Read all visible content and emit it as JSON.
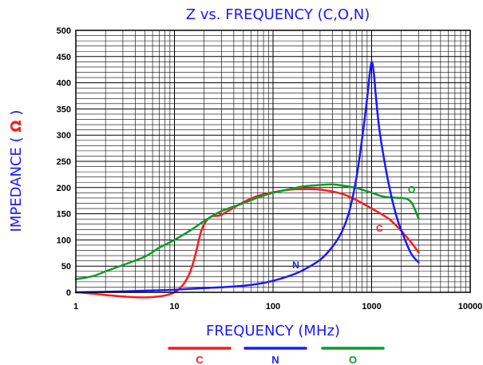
{
  "chart_data": {
    "type": "line",
    "title": "Z vs. FREQUENCY (C,O,N)",
    "xlabel": "FREQUENCY (MHz)",
    "ylabel": "IMPEDANCE",
    "ylabel_unit": "Ω",
    "x_scale": "log",
    "xlim": [
      1,
      10000
    ],
    "ylim": [
      0,
      500
    ],
    "x_ticks": [
      "1",
      "10",
      "100",
      "1000",
      "10000"
    ],
    "y_ticks": [
      "0",
      "50",
      "100",
      "150",
      "200",
      "250",
      "300",
      "350",
      "400",
      "450",
      "500"
    ],
    "grid": true,
    "legend_position": "bottom",
    "series": [
      {
        "name": "C",
        "color": "#ff1a1a",
        "label_at": [
          1200,
          116
        ],
        "points": [
          [
            1,
            0
          ],
          [
            10,
            0
          ],
          [
            20,
            130
          ],
          [
            30,
            148
          ],
          [
            50,
            172
          ],
          [
            70,
            184
          ],
          [
            100,
            191
          ],
          [
            150,
            196
          ],
          [
            200,
            197
          ],
          [
            300,
            196
          ],
          [
            500,
            188
          ],
          [
            700,
            176
          ],
          [
            1000,
            160
          ],
          [
            1500,
            140
          ],
          [
            2000,
            117
          ],
          [
            2500,
            96
          ],
          [
            3000,
            76
          ]
        ]
      },
      {
        "name": "N",
        "color": "#1a1aff",
        "label_at": [
          170,
          46
        ],
        "points": [
          [
            1,
            0
          ],
          [
            2,
            1
          ],
          [
            5,
            3
          ],
          [
            10,
            5
          ],
          [
            20,
            8
          ],
          [
            40,
            11
          ],
          [
            70,
            16
          ],
          [
            100,
            22
          ],
          [
            150,
            32
          ],
          [
            200,
            42
          ],
          [
            300,
            62
          ],
          [
            400,
            87
          ],
          [
            500,
            116
          ],
          [
            600,
            158
          ],
          [
            700,
            218
          ],
          [
            800,
            293
          ],
          [
            900,
            370
          ],
          [
            950,
            412
          ],
          [
            1000,
            440
          ],
          [
            1050,
            420
          ],
          [
            1100,
            378
          ],
          [
            1200,
            310
          ],
          [
            1400,
            233
          ],
          [
            1600,
            180
          ],
          [
            1800,
            143
          ],
          [
            2000,
            118
          ],
          [
            2500,
            75
          ],
          [
            3000,
            57
          ]
        ]
      },
      {
        "name": "O",
        "color": "#0a9b2a",
        "label_at": [
          2550,
          190
        ],
        "points": [
          [
            1,
            25
          ],
          [
            1.5,
            31
          ],
          [
            2,
            40
          ],
          [
            3,
            52
          ],
          [
            5,
            68
          ],
          [
            7,
            85
          ],
          [
            10,
            100
          ],
          [
            15,
            120
          ],
          [
            20,
            136
          ],
          [
            30,
            155
          ],
          [
            50,
            170
          ],
          [
            70,
            181
          ],
          [
            100,
            190
          ],
          [
            150,
            197
          ],
          [
            200,
            202
          ],
          [
            300,
            205
          ],
          [
            400,
            206
          ],
          [
            500,
            204
          ],
          [
            700,
            199
          ],
          [
            1000,
            190
          ],
          [
            1300,
            183
          ],
          [
            1600,
            181
          ],
          [
            2000,
            180
          ],
          [
            2300,
            178
          ],
          [
            2600,
            168
          ],
          [
            3000,
            140
          ]
        ]
      }
    ]
  }
}
